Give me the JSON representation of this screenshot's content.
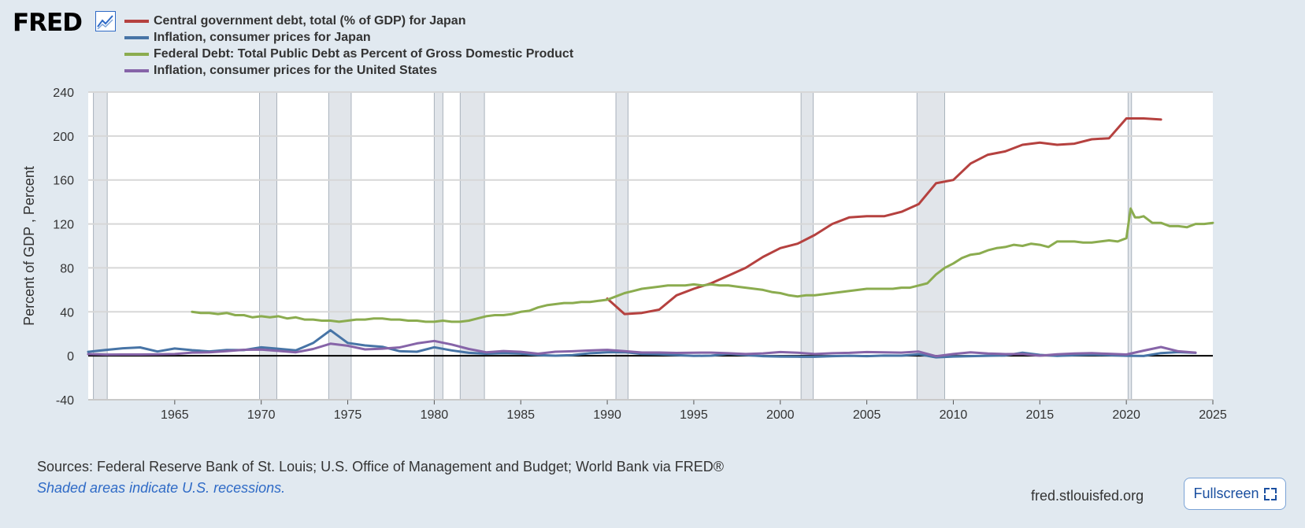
{
  "header": {
    "logo_text": "FRED",
    "logo_icon": "chart-line-icon"
  },
  "colors": {
    "background": "#e1e9f0",
    "plot_background": "#ffffff",
    "recession_shade": "#e1e5ea",
    "zero_line": "#000000"
  },
  "chart_data": {
    "type": "line",
    "title": "",
    "xlabel": "",
    "ylabel": "Percent of GDP , Percent",
    "xlim": [
      1960,
      2025
    ],
    "ylim": [
      -40,
      240
    ],
    "x_ticks": [
      "1965",
      "1970",
      "1975",
      "1980",
      "1985",
      "1990",
      "1995",
      "2000",
      "2005",
      "2010",
      "2015",
      "2020",
      "2025"
    ],
    "y_ticks": [
      "-40",
      "0",
      "40",
      "80",
      "120",
      "160",
      "200",
      "240"
    ],
    "grid": true,
    "legend_position": "top-left",
    "recessions": [
      [
        1960.3,
        1961.1
      ],
      [
        1969.9,
        1970.9
      ],
      [
        1973.9,
        1975.2
      ],
      [
        1980.0,
        1980.5
      ],
      [
        1981.5,
        1982.9
      ],
      [
        1990.5,
        1991.2
      ],
      [
        2001.2,
        2001.9
      ],
      [
        2007.9,
        2009.5
      ],
      [
        2020.1,
        2020.3
      ]
    ],
    "series": [
      {
        "name": "Central government debt, total (% of GDP) for Japan",
        "color": "#b5413f",
        "points": [
          [
            1990,
            52
          ],
          [
            1991,
            38
          ],
          [
            1992,
            39
          ],
          [
            1993,
            42
          ],
          [
            1994,
            55
          ],
          [
            1995,
            61
          ],
          [
            1996,
            66
          ],
          [
            1997,
            73
          ],
          [
            1998,
            80
          ],
          [
            1999,
            90
          ],
          [
            2000,
            98
          ],
          [
            2001,
            102
          ],
          [
            2002,
            110
          ],
          [
            2003,
            120
          ],
          [
            2004,
            126
          ],
          [
            2005,
            127
          ],
          [
            2006,
            127
          ],
          [
            2007,
            131
          ],
          [
            2008,
            138
          ],
          [
            2009,
            157
          ],
          [
            2010,
            160
          ],
          [
            2011,
            175
          ],
          [
            2012,
            183
          ],
          [
            2013,
            186
          ],
          [
            2014,
            192
          ],
          [
            2015,
            194
          ],
          [
            2016,
            192
          ],
          [
            2017,
            193
          ],
          [
            2018,
            197
          ],
          [
            2019,
            198
          ],
          [
            2020,
            216
          ],
          [
            2021,
            216
          ],
          [
            2022,
            215
          ]
        ]
      },
      {
        "name": "Inflation, consumer prices for Japan",
        "color": "#4774a6",
        "points": [
          [
            1960,
            3.6
          ],
          [
            1961,
            5.3
          ],
          [
            1962,
            6.8
          ],
          [
            1963,
            7.6
          ],
          [
            1964,
            3.9
          ],
          [
            1965,
            6.6
          ],
          [
            1966,
            5.1
          ],
          [
            1967,
            4.0
          ],
          [
            1968,
            5.3
          ],
          [
            1969,
            5.2
          ],
          [
            1970,
            7.7
          ],
          [
            1971,
            6.3
          ],
          [
            1972,
            4.9
          ],
          [
            1973,
            11.6
          ],
          [
            1974,
            23.2
          ],
          [
            1975,
            11.7
          ],
          [
            1976,
            9.4
          ],
          [
            1977,
            8.2
          ],
          [
            1978,
            4.2
          ],
          [
            1979,
            3.7
          ],
          [
            1980,
            7.8
          ],
          [
            1981,
            4.9
          ],
          [
            1982,
            2.7
          ],
          [
            1983,
            1.9
          ],
          [
            1984,
            2.3
          ],
          [
            1985,
            2.0
          ],
          [
            1986,
            0.6
          ],
          [
            1987,
            0.1
          ],
          [
            1988,
            0.7
          ],
          [
            1989,
            2.3
          ],
          [
            1990,
            3.1
          ],
          [
            1991,
            3.3
          ],
          [
            1992,
            1.7
          ],
          [
            1993,
            1.3
          ],
          [
            1994,
            0.7
          ],
          [
            1995,
            -0.1
          ],
          [
            1996,
            0.1
          ],
          [
            1997,
            1.7
          ],
          [
            1998,
            0.7
          ],
          [
            1999,
            -0.3
          ],
          [
            2000,
            -0.7
          ],
          [
            2001,
            -0.8
          ],
          [
            2002,
            -0.9
          ],
          [
            2003,
            -0.3
          ],
          [
            2004,
            0.0
          ],
          [
            2005,
            -0.3
          ],
          [
            2006,
            0.2
          ],
          [
            2007,
            0.1
          ],
          [
            2008,
            1.4
          ],
          [
            2009,
            -1.4
          ],
          [
            2010,
            -0.7
          ],
          [
            2011,
            -0.3
          ],
          [
            2012,
            0.0
          ],
          [
            2013,
            0.3
          ],
          [
            2014,
            2.8
          ],
          [
            2015,
            0.8
          ],
          [
            2016,
            -0.1
          ],
          [
            2017,
            0.5
          ],
          [
            2018,
            1.0
          ],
          [
            2019,
            0.5
          ],
          [
            2020,
            0.0
          ],
          [
            2021,
            -0.2
          ],
          [
            2022,
            2.5
          ],
          [
            2023,
            3.3
          ],
          [
            2024,
            2.7
          ]
        ]
      },
      {
        "name": "Federal Debt: Total Public Debt as Percent of Gross Domestic Product",
        "color": "#8bac4f",
        "points": [
          [
            1966.0,
            40
          ],
          [
            1966.5,
            39
          ],
          [
            1967.0,
            39
          ],
          [
            1967.5,
            38
          ],
          [
            1968.0,
            39
          ],
          [
            1968.5,
            37
          ],
          [
            1969.0,
            37
          ],
          [
            1969.5,
            35
          ],
          [
            1970.0,
            36
          ],
          [
            1970.5,
            35
          ],
          [
            1971.0,
            36
          ],
          [
            1971.5,
            34
          ],
          [
            1972.0,
            35
          ],
          [
            1972.5,
            33
          ],
          [
            1973.0,
            33
          ],
          [
            1973.5,
            32
          ],
          [
            1974.0,
            32
          ],
          [
            1974.5,
            31
          ],
          [
            1975.0,
            32
          ],
          [
            1975.5,
            33
          ],
          [
            1976.0,
            33
          ],
          [
            1976.5,
            34
          ],
          [
            1977.0,
            34
          ],
          [
            1977.5,
            33
          ],
          [
            1978.0,
            33
          ],
          [
            1978.5,
            32
          ],
          [
            1979.0,
            32
          ],
          [
            1979.5,
            31
          ],
          [
            1980.0,
            31
          ],
          [
            1980.5,
            32
          ],
          [
            1981.0,
            31
          ],
          [
            1981.5,
            31
          ],
          [
            1982.0,
            32
          ],
          [
            1982.5,
            34
          ],
          [
            1983.0,
            36
          ],
          [
            1983.5,
            37
          ],
          [
            1984.0,
            37
          ],
          [
            1984.5,
            38
          ],
          [
            1985.0,
            40
          ],
          [
            1985.5,
            41
          ],
          [
            1986.0,
            44
          ],
          [
            1986.5,
            46
          ],
          [
            1987.0,
            47
          ],
          [
            1987.5,
            48
          ],
          [
            1988.0,
            48
          ],
          [
            1988.5,
            49
          ],
          [
            1989.0,
            49
          ],
          [
            1989.5,
            50
          ],
          [
            1990.0,
            51
          ],
          [
            1990.5,
            54
          ],
          [
            1991.0,
            57
          ],
          [
            1991.5,
            59
          ],
          [
            1992.0,
            61
          ],
          [
            1992.5,
            62
          ],
          [
            1993.0,
            63
          ],
          [
            1993.5,
            64
          ],
          [
            1994.0,
            64
          ],
          [
            1994.5,
            64
          ],
          [
            1995.0,
            65
          ],
          [
            1995.5,
            64
          ],
          [
            1996.0,
            65
          ],
          [
            1996.5,
            64
          ],
          [
            1997.0,
            64
          ],
          [
            1997.5,
            63
          ],
          [
            1998.0,
            62
          ],
          [
            1998.5,
            61
          ],
          [
            1999.0,
            60
          ],
          [
            1999.5,
            58
          ],
          [
            2000.0,
            57
          ],
          [
            2000.5,
            55
          ],
          [
            2001.0,
            54
          ],
          [
            2001.5,
            55
          ],
          [
            2002.0,
            55
          ],
          [
            2002.5,
            56
          ],
          [
            2003.0,
            57
          ],
          [
            2003.5,
            58
          ],
          [
            2004.0,
            59
          ],
          [
            2004.5,
            60
          ],
          [
            2005.0,
            61
          ],
          [
            2005.5,
            61
          ],
          [
            2006.0,
            61
          ],
          [
            2006.5,
            61
          ],
          [
            2007.0,
            62
          ],
          [
            2007.5,
            62
          ],
          [
            2008.0,
            64
          ],
          [
            2008.5,
            66
          ],
          [
            2009.0,
            74
          ],
          [
            2009.5,
            80
          ],
          [
            2010.0,
            84
          ],
          [
            2010.5,
            89
          ],
          [
            2011.0,
            92
          ],
          [
            2011.5,
            93
          ],
          [
            2012.0,
            96
          ],
          [
            2012.5,
            98
          ],
          [
            2013.0,
            99
          ],
          [
            2013.5,
            101
          ],
          [
            2014.0,
            100
          ],
          [
            2014.5,
            102
          ],
          [
            2015.0,
            101
          ],
          [
            2015.5,
            99
          ],
          [
            2016.0,
            104
          ],
          [
            2016.5,
            104
          ],
          [
            2017.0,
            104
          ],
          [
            2017.5,
            103
          ],
          [
            2018.0,
            103
          ],
          [
            2018.5,
            104
          ],
          [
            2019.0,
            105
          ],
          [
            2019.5,
            104
          ],
          [
            2020.0,
            107
          ],
          [
            2020.25,
            134
          ],
          [
            2020.5,
            126
          ],
          [
            2020.75,
            126
          ],
          [
            2021.0,
            127
          ],
          [
            2021.5,
            121
          ],
          [
            2022.0,
            121
          ],
          [
            2022.5,
            118
          ],
          [
            2023.0,
            118
          ],
          [
            2023.5,
            117
          ],
          [
            2024.0,
            120
          ],
          [
            2024.5,
            120
          ],
          [
            2025.0,
            121
          ]
        ]
      },
      {
        "name": "Inflation, consumer prices for the United States",
        "color": "#8664a8",
        "points": [
          [
            1960,
            1.5
          ],
          [
            1961,
            1.1
          ],
          [
            1962,
            1.2
          ],
          [
            1963,
            1.2
          ],
          [
            1964,
            1.3
          ],
          [
            1965,
            1.6
          ],
          [
            1966,
            2.9
          ],
          [
            1967,
            3.1
          ],
          [
            1968,
            4.2
          ],
          [
            1969,
            5.5
          ],
          [
            1970,
            5.7
          ],
          [
            1971,
            4.4
          ],
          [
            1972,
            3.2
          ],
          [
            1973,
            6.2
          ],
          [
            1974,
            11.0
          ],
          [
            1975,
            9.1
          ],
          [
            1976,
            5.8
          ],
          [
            1977,
            6.5
          ],
          [
            1978,
            7.6
          ],
          [
            1979,
            11.3
          ],
          [
            1980,
            13.5
          ],
          [
            1981,
            10.3
          ],
          [
            1982,
            6.2
          ],
          [
            1983,
            3.2
          ],
          [
            1984,
            4.3
          ],
          [
            1985,
            3.6
          ],
          [
            1986,
            1.9
          ],
          [
            1987,
            3.7
          ],
          [
            1988,
            4.1
          ],
          [
            1989,
            4.8
          ],
          [
            1990,
            5.4
          ],
          [
            1991,
            4.2
          ],
          [
            1992,
            3.0
          ],
          [
            1993,
            3.0
          ],
          [
            1994,
            2.6
          ],
          [
            1995,
            2.8
          ],
          [
            1996,
            2.9
          ],
          [
            1997,
            2.3
          ],
          [
            1998,
            1.6
          ],
          [
            1999,
            2.2
          ],
          [
            2000,
            3.4
          ],
          [
            2001,
            2.8
          ],
          [
            2002,
            1.6
          ],
          [
            2003,
            2.3
          ],
          [
            2004,
            2.7
          ],
          [
            2005,
            3.4
          ],
          [
            2006,
            3.2
          ],
          [
            2007,
            2.9
          ],
          [
            2008,
            3.8
          ],
          [
            2009,
            -0.4
          ],
          [
            2010,
            1.6
          ],
          [
            2011,
            3.2
          ],
          [
            2012,
            2.1
          ],
          [
            2013,
            1.5
          ],
          [
            2014,
            1.6
          ],
          [
            2015,
            0.1
          ],
          [
            2016,
            1.3
          ],
          [
            2017,
            2.1
          ],
          [
            2018,
            2.4
          ],
          [
            2019,
            1.8
          ],
          [
            2020,
            1.2
          ],
          [
            2021,
            4.7
          ],
          [
            2022,
            8.0
          ],
          [
            2023,
            4.1
          ],
          [
            2024,
            2.9
          ]
        ]
      }
    ]
  },
  "footer": {
    "sources": "Sources: Federal Reserve Bank of St. Louis; U.S. Office of Management and Budget; World Bank via FRED®",
    "shaded_note": "Shaded areas indicate U.S. recessions.",
    "site": "fred.stlouisfed.org",
    "fullscreen_label": "Fullscreen",
    "fullscreen_icon": "expand-icon"
  }
}
